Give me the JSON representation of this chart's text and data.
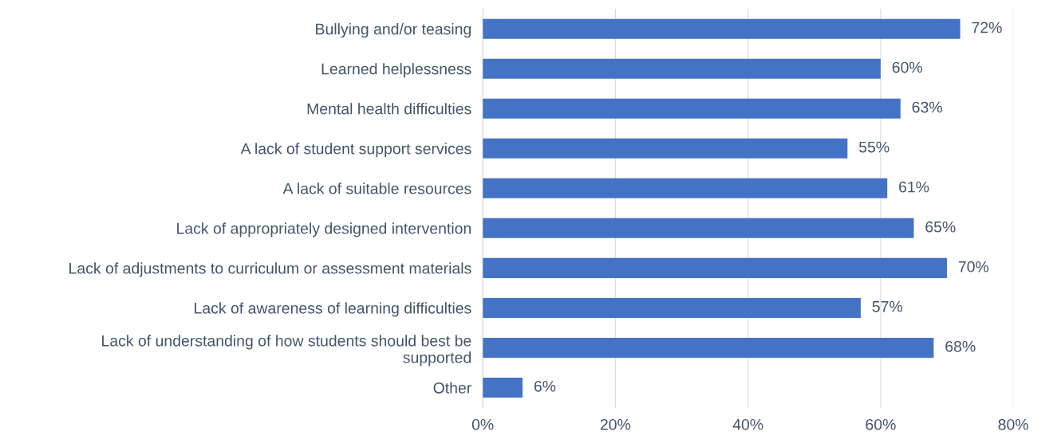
{
  "chart_data": {
    "type": "bar",
    "orientation": "horizontal",
    "categories": [
      "Bullying and/or teasing",
      "Learned helplessness",
      "Mental health difficulties",
      "A lack of student support services",
      "A lack of suitable resources",
      "Lack of appropriately designed intervention",
      "Lack of adjustments to curriculum or assessment materials",
      "Lack of awareness of learning difficulties",
      "Lack of understanding of how students should best be supported",
      "Other"
    ],
    "values": [
      72,
      60,
      63,
      55,
      61,
      65,
      70,
      57,
      68,
      6
    ],
    "value_labels": [
      "72%",
      "60%",
      "63%",
      "55%",
      "61%",
      "65%",
      "70%",
      "57%",
      "68%",
      "6%"
    ],
    "color": "#4472c4",
    "xlim": [
      0,
      80
    ],
    "xticks": [
      {
        "value": 0,
        "label": "0%"
      },
      {
        "value": 20,
        "label": "20%"
      },
      {
        "value": 40,
        "label": "40%"
      },
      {
        "value": 60,
        "label": "60%"
      },
      {
        "value": 80,
        "label": "80%"
      }
    ],
    "grid": "x",
    "legend": false
  }
}
